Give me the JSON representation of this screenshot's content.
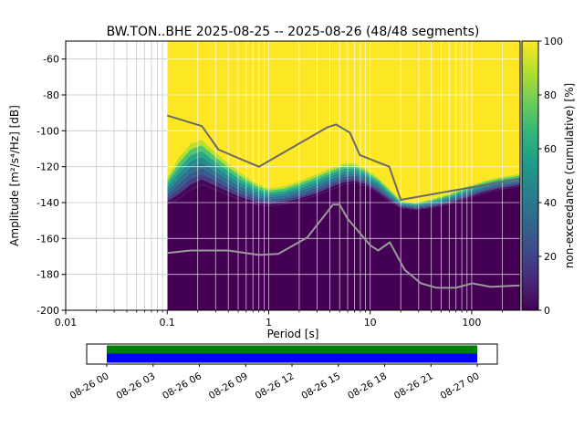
{
  "title": "BW.TON..BHE   2025-08-25 -- 2025-08-26  (48/48 segments)",
  "axes": {
    "xlabel": "Period [s]",
    "ylabel": "Amplitude [m²/s⁴/Hz] [dB]",
    "xlim": [
      0.01,
      300
    ],
    "ylim": [
      -200,
      -50
    ],
    "x_ticks": [
      0.01,
      0.1,
      1,
      10,
      100
    ],
    "x_tick_labels": [
      "0.01",
      "0.1",
      "1",
      "10",
      "100"
    ],
    "y_ticks": [
      -60,
      -80,
      -100,
      -120,
      -140,
      -160,
      -180,
      -200
    ],
    "y_tick_labels": [
      "-60",
      "-80",
      "-100",
      "-120",
      "-140",
      "-160",
      "-180",
      "-200"
    ],
    "grid_color_outside": "#c9c9c9",
    "grid_color_over_data": "rgba(255,255,255,0.75)"
  },
  "colorbar": {
    "label": "non-exceedance (cumulative) [%]",
    "ticks": [
      0,
      20,
      40,
      60,
      80,
      100
    ],
    "tick_labels": [
      "0",
      "20",
      "40",
      "60",
      "80",
      "100"
    ],
    "range": [
      0,
      100
    ],
    "gradient": [
      "#440154",
      "#482878",
      "#3e4989",
      "#31688e",
      "#26828e",
      "#1f9e89",
      "#35b779",
      "#6ece58",
      "#b5de2b",
      "#fde725"
    ]
  },
  "chart_data": {
    "type": "heatmap",
    "note": "PPSD cumulative non-exceedance: yellow = 100% above band_hi_db, dark purple = 0% below band_lo_db, viridis transition between the two boundary curves.",
    "data_period_range": [
      0.1,
      300
    ],
    "x_periods": [
      0.1,
      0.13,
      0.17,
      0.22,
      0.3,
      0.4,
      0.55,
      0.75,
      1.0,
      1.4,
      2.0,
      3.0,
      4.0,
      5.5,
      7.0,
      9.0,
      12,
      16,
      20,
      28,
      40,
      60,
      90,
      130,
      180,
      300
    ],
    "band_hi_db": [
      -126,
      -115,
      -107,
      -105,
      -112,
      -118,
      -124,
      -129,
      -132,
      -131,
      -128,
      -124,
      -121,
      -118,
      -118,
      -121,
      -126,
      -133,
      -139,
      -140,
      -138,
      -135,
      -131,
      -128,
      -126,
      -124
    ],
    "band_lo_db": [
      -141,
      -138,
      -133,
      -130,
      -133,
      -136,
      -139,
      -141,
      -142,
      -141,
      -139,
      -136,
      -133,
      -130,
      -129,
      -131,
      -135,
      -140,
      -143,
      -144,
      -143,
      -141,
      -138,
      -135,
      -133,
      -131
    ],
    "color_below_band": "#440154",
    "color_above_band": "#fde725",
    "band_colors": [
      "#46085c",
      "#424086",
      "#375b8d",
      "#2b748e",
      "#218e8d",
      "#27a884",
      "#52c569",
      "#bddf26"
    ],
    "noise_models": {
      "high": {
        "color": "#6a6a6a",
        "periods": [
          0.1,
          0.22,
          0.32,
          0.8,
          3.8,
          4.6,
          6.3,
          7.9,
          15.4,
          20,
          300
        ],
        "db": [
          -91.5,
          -97.4,
          -110.5,
          -120,
          -98,
          -96.5,
          -101,
          -113.5,
          -120,
          -138.5,
          -126.7
        ]
      },
      "low": {
        "color": "#9a9a9a",
        "periods": [
          0.1,
          0.17,
          0.4,
          0.8,
          1.24,
          2.4,
          4.3,
          5,
          6,
          10,
          12,
          15.6,
          21.9,
          31.6,
          45,
          70,
          101,
          154,
          300
        ],
        "db": [
          -168.1,
          -166.7,
          -166.7,
          -169.2,
          -168.6,
          -159.4,
          -141.1,
          -141.1,
          -149,
          -163.8,
          -166.7,
          -162.1,
          -177.5,
          -185,
          -187.5,
          -187.5,
          -185,
          -187,
          -186.1
        ]
      }
    }
  },
  "timeline": {
    "tick_labels": [
      "08-26 00",
      "08-26 03",
      "08-26 06",
      "08-26 09",
      "08-26 12",
      "08-26 15",
      "08-26 18",
      "08-26 21",
      "08-27 00"
    ],
    "data_color": "#008000",
    "range_color": "#0000ff"
  }
}
